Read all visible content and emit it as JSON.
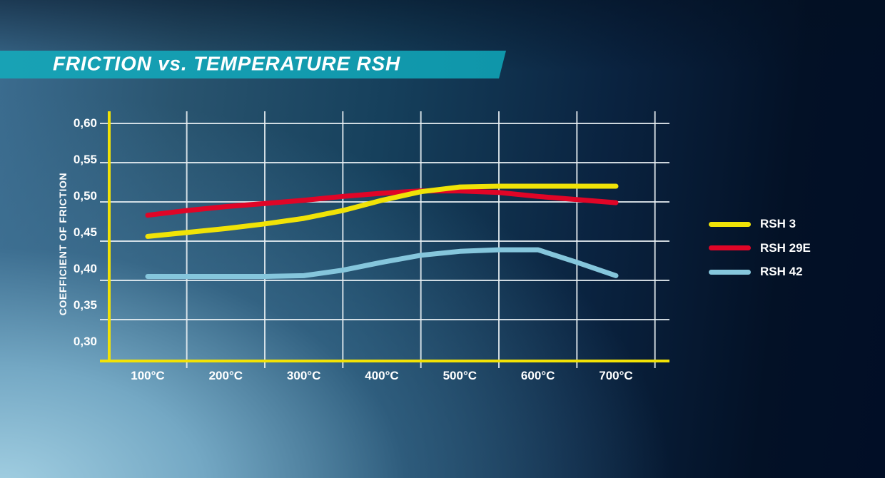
{
  "header": {
    "title": "FRICTION vs. TEMPERATURE RSH"
  },
  "colors": {
    "banner_teal": "#1199ad",
    "axis_yellow": "#f2e205",
    "gridline_white": "#e9f0f4",
    "text_white": "#ffffff",
    "background_light": "#9ccadf",
    "background_dark": "#02102a"
  },
  "chart_data": {
    "type": "line",
    "title": "FRICTION vs. TEMPERATURE RSH",
    "xlabel": "",
    "ylabel": "COEFFICIENT OF FRICTION",
    "x_unit": "°C",
    "grid": true,
    "legend_position": "right",
    "xlim": [
      50,
      765
    ],
    "ylim": [
      0.297,
      0.615
    ],
    "x": [
      100,
      150,
      200,
      250,
      300,
      350,
      400,
      450,
      500,
      550,
      600,
      650,
      700
    ],
    "series": [
      {
        "name": "RSH 3",
        "color": "#f0e307",
        "values": [
          0.456,
          0.461,
          0.466,
          0.472,
          0.479,
          0.489,
          0.502,
          0.513,
          0.519,
          0.52,
          0.52,
          0.52,
          0.52
        ]
      },
      {
        "name": "RSH 29E",
        "color": "#e00527",
        "values": [
          0.483,
          0.489,
          0.494,
          0.498,
          0.502,
          0.507,
          0.511,
          0.514,
          0.514,
          0.512,
          0.507,
          0.503,
          0.499
        ]
      },
      {
        "name": "RSH 42",
        "color": "#85c6dc",
        "values": [
          0.405,
          0.405,
          0.405,
          0.405,
          0.406,
          0.413,
          0.423,
          0.432,
          0.437,
          0.439,
          0.439,
          0.423,
          0.406
        ]
      }
    ],
    "x_tick_values": [
      100,
      200,
      300,
      400,
      500,
      600,
      700
    ],
    "x_tick_labels": [
      "100°C",
      "200°C",
      "300°C",
      "400°C",
      "500°C",
      "600°C",
      "700°C"
    ],
    "y_tick_values": [
      0.6,
      0.55,
      0.5,
      0.45,
      0.4,
      0.35,
      0.3
    ],
    "y_tick_labels": [
      "0,60",
      "0,55",
      "0,50",
      "0,45",
      "0,40",
      "0,35",
      "0,30"
    ],
    "x_gridline_values": [
      150,
      250,
      350,
      450,
      550,
      650,
      750
    ],
    "y_gridline_values": [
      0.6,
      0.55,
      0.5,
      0.45,
      0.4,
      0.35
    ]
  }
}
